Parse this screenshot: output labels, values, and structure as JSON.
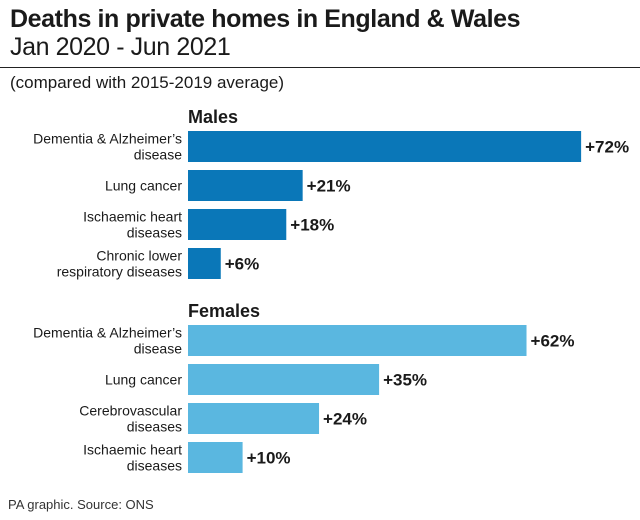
{
  "header": {
    "title": "Deaths in private homes in England & Wales",
    "subtitle": "Jan 2020 - Jun 2021",
    "note": "(compared with 2015-2019 average)"
  },
  "footer": {
    "source": "PA graphic. Source: ONS"
  },
  "chart_data": {
    "type": "bar",
    "orientation": "horizontal",
    "title": "Deaths in private homes in England & Wales",
    "subtitle": "Jan 2020 - Jun 2021",
    "unit": "%",
    "groups": [
      {
        "name": "Males",
        "color": "#0a77b8",
        "categories": [
          [
            "Dementia & Alzheimer’s",
            "disease"
          ],
          [
            "Lung cancer"
          ],
          [
            "Ischaemic heart",
            "diseases"
          ],
          [
            "Chronic lower",
            "respiratory diseases"
          ]
        ],
        "values": [
          72,
          21,
          18,
          6
        ],
        "labels": [
          "+72%",
          "+21%",
          "+18%",
          "+6%"
        ]
      },
      {
        "name": "Females",
        "color": "#5ab7e0",
        "categories": [
          [
            "Dementia & Alzheimer’s",
            "disease"
          ],
          [
            "Lung cancer"
          ],
          [
            "Cerebrovascular",
            "diseases"
          ],
          [
            "Ischaemic heart",
            "diseases"
          ]
        ],
        "values": [
          62,
          35,
          24,
          10
        ],
        "labels": [
          "+62%",
          "+35%",
          "+24%",
          "+10%"
        ]
      }
    ]
  }
}
